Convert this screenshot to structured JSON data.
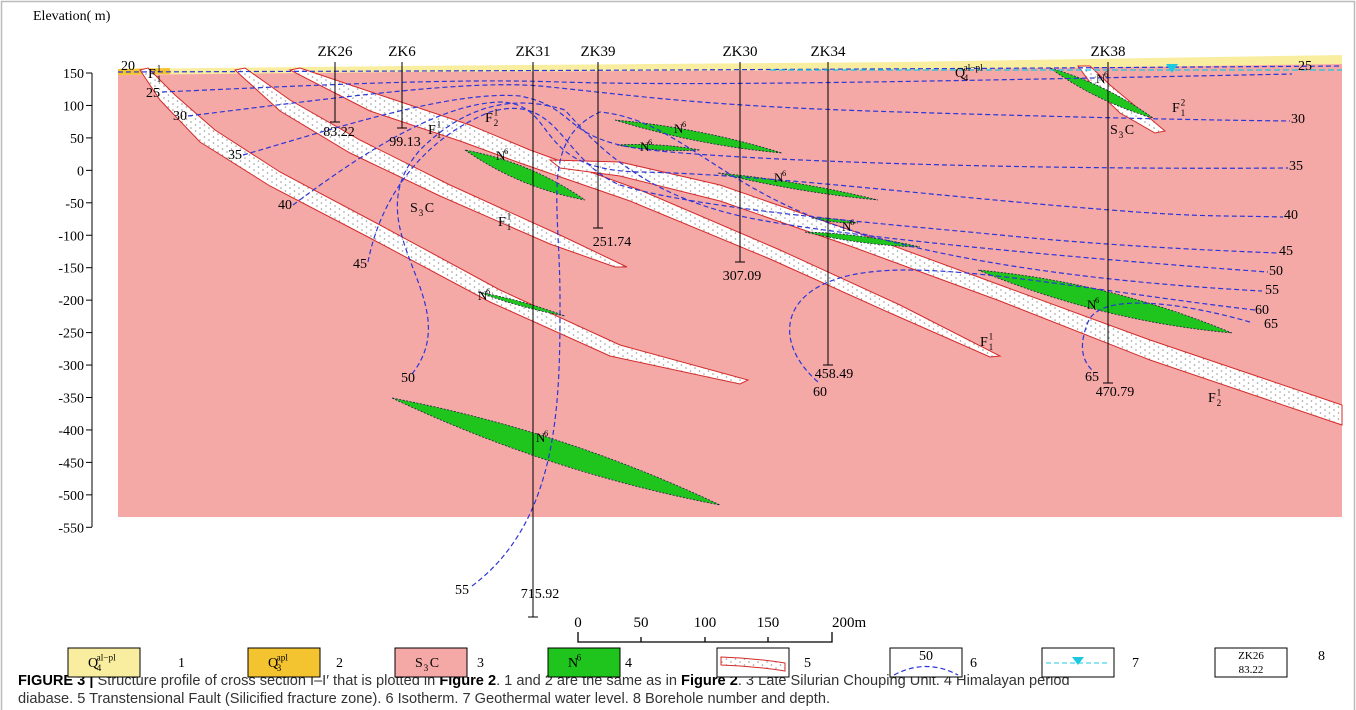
{
  "axis": {
    "title": "Elevation( m)",
    "ticks": [
      150,
      100,
      50,
      0,
      -50,
      -100,
      -150,
      -200,
      -250,
      -300,
      -350,
      -400,
      -450,
      -500,
      -550
    ]
  },
  "boreholes": [
    {
      "name": "ZK26",
      "depth": 83.22
    },
    {
      "name": "ZK6",
      "depth": 99.13
    },
    {
      "name": "ZK31",
      "depth": 715.92
    },
    {
      "name": "ZK39",
      "depth": 251.74
    },
    {
      "name": "ZK30",
      "depth": 307.09
    },
    {
      "name": "ZK34",
      "depth": 458.49
    },
    {
      "name": "ZK38",
      "depth": 470.79
    }
  ],
  "faults": [
    {
      "base": "F",
      "sub": "1",
      "sup": "1"
    },
    {
      "base": "F",
      "sub": "2",
      "sup": "1"
    },
    {
      "base": "F",
      "sub": "1",
      "sup": "1"
    },
    {
      "base": "F",
      "sub": "1",
      "sup": "1"
    },
    {
      "base": "F",
      "sub": "1",
      "sup": "1"
    },
    {
      "base": "F",
      "sub": "2",
      "sup": "1"
    },
    {
      "base": "F",
      "sub": "1",
      "sup": "2"
    }
  ],
  "strata": [
    {
      "base": "S",
      "sub": "3",
      "after": "C"
    },
    {
      "base": "S",
      "sub": "3",
      "after": "C"
    },
    {
      "base": "Q",
      "sub": "4",
      "sup": "al−pl"
    }
  ],
  "diabase": [
    {
      "base": "N",
      "sup": "6"
    },
    {
      "base": "N",
      "sup": "6"
    },
    {
      "base": "N",
      "sup": "6"
    },
    {
      "base": "N",
      "sup": "6"
    },
    {
      "base": "N",
      "sup": "6"
    },
    {
      "base": "N",
      "sup": "6"
    },
    {
      "base": "N",
      "sup": "6"
    },
    {
      "base": "N",
      "sup": "6"
    },
    {
      "base": "N",
      "sup": "6"
    }
  ],
  "isotherms": [
    20,
    25,
    30,
    35,
    40,
    45,
    50,
    55,
    25,
    30,
    35,
    40,
    45,
    50,
    55,
    60,
    65,
    60,
    65
  ],
  "scale_bar": [
    "0",
    "50",
    "100",
    "150",
    "200m"
  ],
  "legend": [
    {
      "symbol": {
        "base": "Q",
        "sub": "4",
        "sup": "al−pl"
      },
      "color": "#f9eea0",
      "number": 1
    },
    {
      "symbol": {
        "base": "Q",
        "sub": "3",
        "sup": "apl"
      },
      "color": "#f4c430",
      "number": 2
    },
    {
      "symbol": {
        "base": "S",
        "sub": "3",
        "after": "C"
      },
      "color": "#f5a9a7",
      "number": 3
    },
    {
      "symbol": {
        "base": "N",
        "sup": "6"
      },
      "color": "#1fc41c",
      "number": 4
    },
    {
      "number": 5
    },
    {
      "sample": "50",
      "number": 6
    },
    {
      "number": 7
    },
    {
      "sample": [
        "ZK26",
        "83.22"
      ],
      "number": 8
    }
  ],
  "caption": {
    "lines": [
      [
        {
          "text": "FIGURE 3 |",
          "bold": true
        },
        {
          "text": " Structure profile of cross section I–I′ that is plotted in "
        },
        {
          "text": "Figure 2",
          "bold": true
        },
        {
          "text": ". 1 and 2 are the same as in "
        },
        {
          "text": "Figure 2",
          "bold": true
        },
        {
          "text": ". 3 Late Silurian Chouping Unit. 4 Himalayan period"
        }
      ],
      [
        {
          "text": "diabase. 5 Transtensional Fault (Silicified fracture zone). 6 Isotherm. 7 Geothermal water level. 8 Borehole number and depth."
        }
      ]
    ]
  }
}
